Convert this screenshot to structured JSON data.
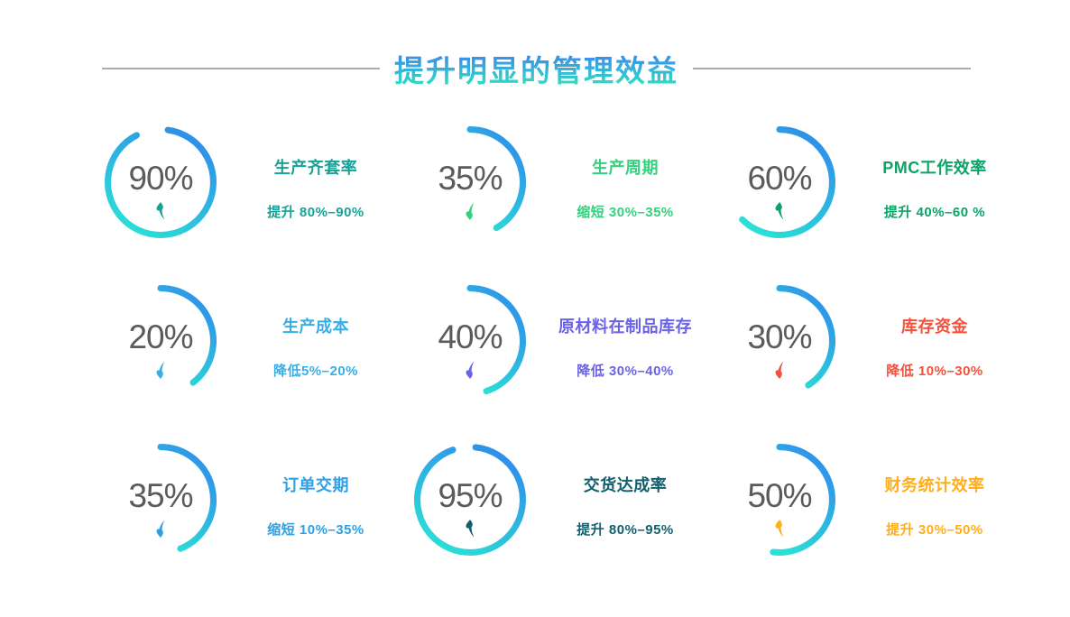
{
  "title": {
    "text": "提升明显的管理效益"
  },
  "colors": {
    "title_gradient": [
      "#3d7ff2",
      "#2ee2c2"
    ],
    "arc_gradient": [
      "#2f8ceb",
      "#2be0d6"
    ],
    "divider": "#aaacae",
    "percent_text": "#595b5e",
    "background": "#ffffff"
  },
  "metrics": [
    {
      "percent": "90%",
      "name": "生产齐套率",
      "desc": "提升 80%–90%",
      "color": "#18a295",
      "trend": "up",
      "arc_start_deg": -82,
      "arc_sweep_deg": 325
    },
    {
      "percent": "35%",
      "name": "生产周期",
      "desc": "缩短 30%–35%",
      "color": "#33d17e",
      "trend": "down",
      "arc_start_deg": -90,
      "arc_sweep_deg": 150
    },
    {
      "percent": "60%",
      "name": "PMC工作效率",
      "desc": "提升 40%–60 %",
      "color": "#0ca368",
      "trend": "up",
      "arc_start_deg": -90,
      "arc_sweep_deg": 225
    },
    {
      "percent": "20%",
      "name": "生产成本",
      "desc": "降低5%–20%",
      "color": "#38aee8",
      "trend": "down",
      "arc_start_deg": -90,
      "arc_sweep_deg": 142
    },
    {
      "percent": "40%",
      "name": "原材料在制品库存",
      "desc": "降低 30%–40%",
      "color": "#6a62e8",
      "trend": "down",
      "arc_start_deg": -90,
      "arc_sweep_deg": 162
    },
    {
      "percent": "30%",
      "name": "库存资金",
      "desc": "降低 10%–30%",
      "color": "#f4503c",
      "trend": "down",
      "arc_start_deg": -90,
      "arc_sweep_deg": 147
    },
    {
      "percent": "35%",
      "name": "订单交期",
      "desc": "缩短 10%–35%",
      "color": "#2f9fe6",
      "trend": "down",
      "arc_start_deg": -90,
      "arc_sweep_deg": 158
    },
    {
      "percent": "95%",
      "name": "交货达成率",
      "desc": "提升 80%–95%",
      "color": "#135f6d",
      "trend": "up",
      "arc_start_deg": -84,
      "arc_sweep_deg": 335
    },
    {
      "percent": "50%",
      "name": "财务统计效率",
      "desc": "提升 30%–50%",
      "color": "#ffae1c",
      "trend": "up",
      "arc_start_deg": -90,
      "arc_sweep_deg": 187
    }
  ],
  "chart_data": {
    "type": "gauge",
    "title": "提升明显的管理效益",
    "legend_position": "none",
    "items": [
      {
        "label": "生产齐套率",
        "percent": 90,
        "trend": "up",
        "note": "提升 80%–90%"
      },
      {
        "label": "生产周期",
        "percent": 35,
        "trend": "down",
        "note": "缩短 30%–35%"
      },
      {
        "label": "PMC工作效率",
        "percent": 60,
        "trend": "up",
        "note": "提升 40%–60 %"
      },
      {
        "label": "生产成本",
        "percent": 20,
        "trend": "down",
        "note": "降低5%–20%"
      },
      {
        "label": "原材料在制品库存",
        "percent": 40,
        "trend": "down",
        "note": "降低 30%–40%"
      },
      {
        "label": "库存资金",
        "percent": 30,
        "trend": "down",
        "note": "降低 10%–30%"
      },
      {
        "label": "订单交期",
        "percent": 35,
        "trend": "down",
        "note": "缩短 10%–35%"
      },
      {
        "label": "交货达成率",
        "percent": 95,
        "trend": "up",
        "note": "提升 80%–95%"
      },
      {
        "label": "财务统计效率",
        "percent": 50,
        "trend": "up",
        "note": "提升 30%–50%"
      }
    ]
  }
}
